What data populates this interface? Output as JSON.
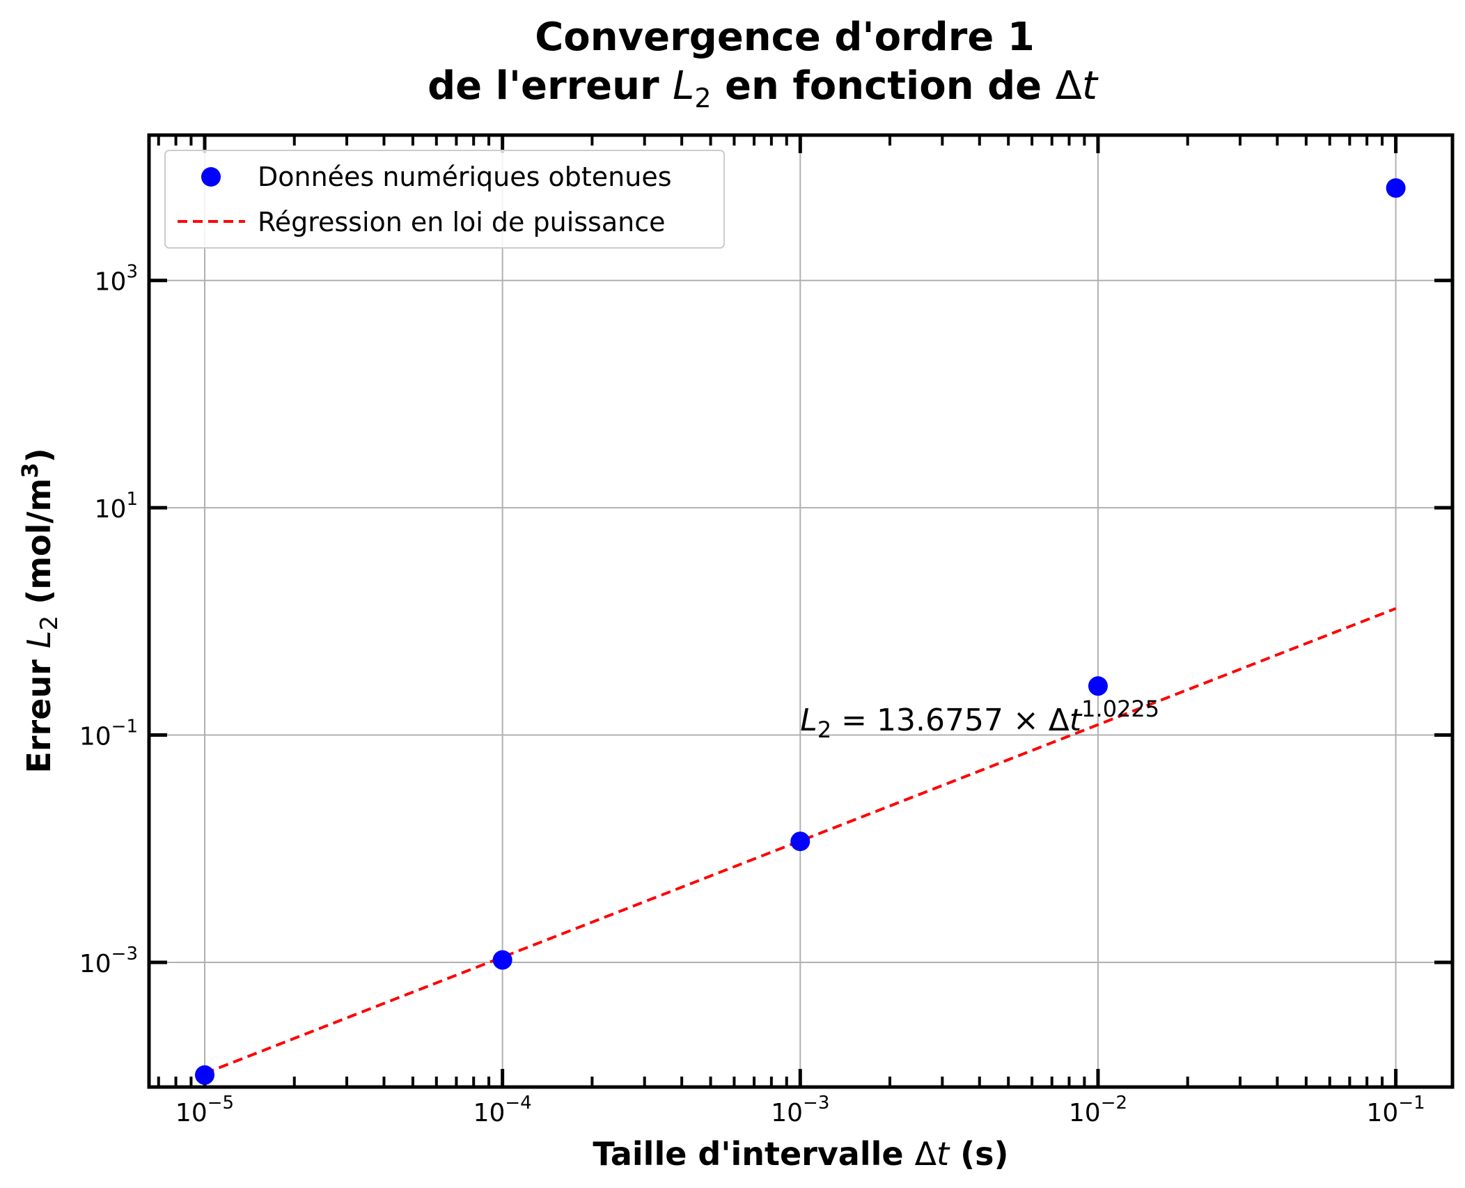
{
  "chart_data": {
    "type": "scatter",
    "title_line1": "Convergence d'ordre 1",
    "title_line2_prefix": "de l'erreur ",
    "title_line2_var": "L",
    "title_line2_sub": "2",
    "title_line2_mid": " en fonction de ",
    "title_line2_delta": "Δ",
    "title_line2_t": "t",
    "xlabel_prefix": "Taille d'intervalle ",
    "xlabel_delta": "Δ",
    "xlabel_t": "t",
    "xlabel_suffix": " (s)",
    "ylabel_prefix": "Erreur ",
    "ylabel_var": "L",
    "ylabel_sub": "2",
    "ylabel_suffix": " (mol/m",
    "ylabel_sup": "3",
    "ylabel_close": ")",
    "x_scale": "log",
    "y_scale": "log",
    "xlim": [
      6.5e-06,
      0.155
    ],
    "ylim": [
      8e-05,
      19000
    ],
    "xticks": [
      {
        "value": 1e-05,
        "base": "10",
        "exp": "−5"
      },
      {
        "value": 0.0001,
        "base": "10",
        "exp": "−4"
      },
      {
        "value": 0.001,
        "base": "10",
        "exp": "−3"
      },
      {
        "value": 0.01,
        "base": "10",
        "exp": "−2"
      },
      {
        "value": 0.1,
        "base": "10",
        "exp": "−1"
      }
    ],
    "yticks": [
      {
        "value": 0.001,
        "base": "10",
        "exp": "−3"
      },
      {
        "value": 0.1,
        "base": "10",
        "exp": "−1"
      },
      {
        "value": 10,
        "base": "10",
        "exp": "1"
      },
      {
        "value": 1000,
        "base": "10",
        "exp": "3"
      }
    ],
    "grid": true,
    "legend_position": "upper-left",
    "series": [
      {
        "name": "Données numériques obtenues",
        "kind": "scatter",
        "color": "#0000ff",
        "x": [
          1e-05,
          0.0001,
          0.001,
          0.01,
          0.1
        ],
        "y": [
          0.000102,
          0.00105,
          0.0116,
          0.27,
          6500
        ]
      },
      {
        "name": "Régression en loi de puissance",
        "kind": "dashed-line",
        "color": "#ff0000",
        "coefficient": 13.6757,
        "exponent": 1.0225,
        "x_range": [
          1e-05,
          0.1
        ]
      }
    ],
    "annotation": {
      "var": "L",
      "sub": "2",
      "equation": " = 13.6757 × Δ",
      "t": "t",
      "sup": "1.0225",
      "x": 0.001,
      "y": 0.11
    }
  }
}
